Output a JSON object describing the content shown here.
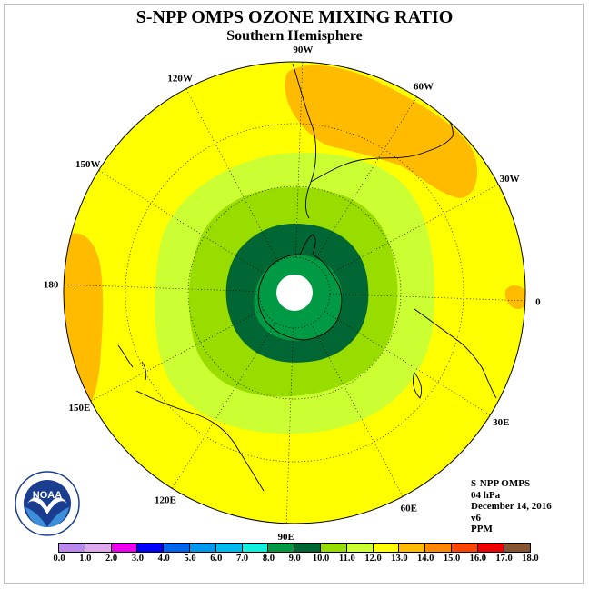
{
  "title": "S-NPP OMPS OZONE MIXING RATIO",
  "subtitle": "Southern Hemisphere",
  "map": {
    "projection": "polar stereographic (south pole center)",
    "longitude_labels": [
      "0",
      "30E",
      "60E",
      "90E",
      "120E",
      "150E",
      "180",
      "150W",
      "120W",
      "90W",
      "60W",
      "30W"
    ],
    "fill_colors": {
      "ocean_background": "#ffff00",
      "ring_outer": "#ccff33",
      "ring_middle": "#99dd00",
      "ring_inner": "#006633",
      "core": "#009944",
      "pole_hole": "#ffffff",
      "high_patches": "#ffbb00"
    }
  },
  "info": {
    "instrument": "S-NPP OMPS",
    "level": "04 hPa",
    "date": "December 14, 2016",
    "version": "v6",
    "units": "PPM"
  },
  "logo_text": "NOAA",
  "colorbar": {
    "colors": [
      "#bb88ee",
      "#ddaaee",
      "#ee00ee",
      "#0000ff",
      "#0066ee",
      "#0099ee",
      "#00bbee",
      "#11eedd",
      "#009944",
      "#006633",
      "#99dd00",
      "#ccff33",
      "#ffff00",
      "#ffbb00",
      "#ff8800",
      "#ff4400",
      "#ee0000",
      "#885533"
    ],
    "ticks": [
      "0.0",
      "1.0",
      "2.0",
      "3.0",
      "4.0",
      "5.0",
      "6.0",
      "7.0",
      "8.0",
      "9.0",
      "10.0",
      "11.0",
      "12.0",
      "13.0",
      "14.0",
      "15.0",
      "16.0",
      "17.0",
      "18.0"
    ]
  }
}
